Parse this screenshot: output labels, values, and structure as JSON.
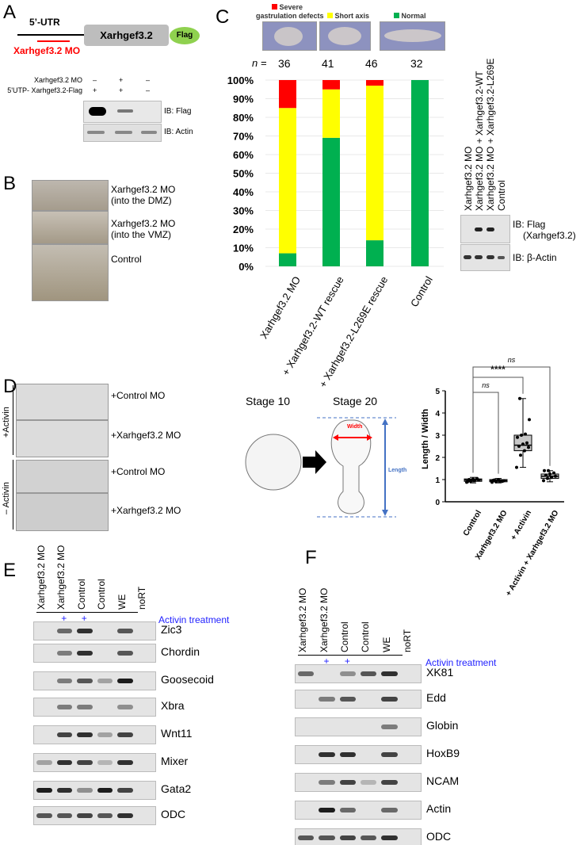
{
  "panels": {
    "a": "A",
    "b": "B",
    "c": "C",
    "d": "D",
    "e": "E",
    "f": "F"
  },
  "panelA": {
    "utr": "5’-UTR",
    "gene": "Xarhgef3.2",
    "tag": "Flag",
    "mo": "Xarhgef3.2 MO",
    "row1_label": "Xarhgef3.2 MO",
    "row1": [
      "–",
      "+",
      "–"
    ],
    "row2_label": "5'UTP- Xarhgef3.2-Flag",
    "row2": [
      "+",
      "+",
      "–"
    ],
    "ib1": "IB: Flag",
    "ib2": "IB: Actin"
  },
  "panelB": {
    "rows": [
      {
        "l1": "Xarhgef3.2 MO",
        "l2": "(into the DMZ)"
      },
      {
        "l1": "Xarhgef3.2 MO",
        "l2": "(into the VMZ)"
      },
      {
        "l1": "Control",
        "l2": ""
      }
    ]
  },
  "panelC": {
    "legend": [
      {
        "label": "Severe",
        "label2": "gastrulation defects",
        "color": "#ff0000"
      },
      {
        "label": "Short axis",
        "color": "#ffff00"
      },
      {
        "label": "Normal",
        "color": "#00b050"
      }
    ],
    "n_label": "n =",
    "blot_lanes": [
      "Xarhgef3.2 MO",
      "Xarhgef3.2 MO + Xarhgef3.2-WT",
      "Xarhgef3.2 MO + Xarhgef3.2-L269E",
      "Control"
    ],
    "ib1": "IB:  Flag",
    "ib1b": "(Xarhgef3.2)",
    "ib2": "IB:  β-Actin"
  },
  "panelD": {
    "activin_plus": "+Activin",
    "activin_minus": "– Activin",
    "rows": [
      "+Control MO",
      "+Xarhgef3.2 MO",
      "+Control MO",
      "+Xarhgef3.2 MO"
    ],
    "stage10": "Stage 10",
    "stage20": "Stage 20",
    "width": "Width",
    "length": "Length"
  },
  "panelE": {
    "lanes": [
      "Xarhgef3.2 MO",
      "Xarhgef3.2 MO",
      "Control",
      "Control",
      "WE",
      "noRT"
    ],
    "plus": [
      "",
      "+",
      "+",
      "",
      "",
      ""
    ],
    "treatment": "Activin treatment",
    "genes": [
      {
        "name": "Zic3",
        "bands": [
          0,
          0.5,
          0.8,
          0,
          0.6,
          0
        ]
      },
      {
        "name": "Chordin",
        "bands": [
          0,
          0.4,
          0.8,
          0,
          0.6,
          0
        ]
      },
      {
        "name": "Goosecoid",
        "bands": [
          0,
          0.4,
          0.6,
          0.2,
          0.9,
          0
        ]
      },
      {
        "name": "Xbra",
        "bands": [
          0,
          0.4,
          0.4,
          0,
          0.3,
          0
        ]
      },
      {
        "name": "Wnt11",
        "bands": [
          0,
          0.7,
          0.8,
          0.2,
          0.7,
          0
        ]
      },
      {
        "name": "Mixer",
        "bands": [
          0.2,
          0.8,
          0.7,
          0.1,
          0.8,
          0
        ]
      },
      {
        "name": "Gata2",
        "bands": [
          0.9,
          0.8,
          0.3,
          0.9,
          0.7,
          0
        ]
      },
      {
        "name": "ODC",
        "bands": [
          0.6,
          0.6,
          0.7,
          0.6,
          0.8,
          0
        ]
      }
    ]
  },
  "panelF": {
    "lanes": [
      "Xarhgef3.2 MO",
      "Xarhgef3.2 MO",
      "Control",
      "Control",
      "WE",
      "noRT"
    ],
    "plus": [
      "",
      "+",
      "+",
      "",
      "",
      ""
    ],
    "treatment": "Activin treatment",
    "genes": [
      {
        "name": "XK81",
        "bands": [
          0.5,
          0,
          0.3,
          0.6,
          0.8,
          0
        ]
      },
      {
        "name": "Edd",
        "bands": [
          0,
          0.4,
          0.6,
          0,
          0.7,
          0
        ]
      },
      {
        "name": "Globin",
        "bands": [
          0,
          0,
          0,
          0,
          0.4,
          0
        ]
      },
      {
        "name": "HoxB9",
        "bands": [
          0,
          0.8,
          0.8,
          0,
          0.7,
          0
        ]
      },
      {
        "name": "NCAM",
        "bands": [
          0,
          0.4,
          0.7,
          0.1,
          0.7,
          0
        ]
      },
      {
        "name": "Actin",
        "bands": [
          0,
          0.9,
          0.5,
          0,
          0.5,
          0
        ]
      },
      {
        "name": "ODC",
        "bands": [
          0.6,
          0.6,
          0.7,
          0.6,
          0.8,
          0
        ]
      }
    ]
  },
  "chart_data": [
    {
      "type": "bar",
      "stacked": true,
      "categories": [
        "Xarhgef3.2 MO",
        "+ Xarhgef3.2-WT rescue",
        "+ Xarhgef3.2-L269E rescue",
        "Control"
      ],
      "n": [
        "36",
        "41",
        "46",
        "32"
      ],
      "series": [
        {
          "name": "Normal",
          "color": "#00b050",
          "values": [
            7,
            69,
            14,
            100
          ]
        },
        {
          "name": "Short axis",
          "color": "#ffff00",
          "values": [
            78,
            26,
            83,
            0
          ]
        },
        {
          "name": "Severe gastrulation defects",
          "color": "#ff0000",
          "values": [
            15,
            5,
            3,
            0
          ]
        }
      ],
      "yticks": [
        "0%",
        "10%",
        "20%",
        "30%",
        "40%",
        "50%",
        "60%",
        "70%",
        "80%",
        "90%",
        "100%"
      ],
      "ylim": [
        0,
        100
      ]
    },
    {
      "type": "box",
      "ylabel": "Length / Width",
      "ylim": [
        0,
        5
      ],
      "yticks": [
        "0",
        "1",
        "2",
        "3",
        "4",
        "5"
      ],
      "categories": [
        "Control",
        "Xarhgef3.2 MO",
        "+ Activin",
        "+ Activin + Xarhgef3.2 MO"
      ],
      "boxes": [
        {
          "min": 0.85,
          "q1": 0.92,
          "median": 0.98,
          "q3": 1.03,
          "max": 1.1
        },
        {
          "min": 0.85,
          "q1": 0.9,
          "median": 0.95,
          "q3": 1.0,
          "max": 1.05
        },
        {
          "min": 1.55,
          "q1": 2.3,
          "median": 2.55,
          "q3": 3.0,
          "max": 4.65
        },
        {
          "min": 0.9,
          "q1": 1.05,
          "median": 1.15,
          "q3": 1.25,
          "max": 1.4
        }
      ],
      "points": [
        [
          0.88,
          0.92,
          0.95,
          0.98,
          1.0,
          1.02,
          1.05,
          0.9,
          0.97
        ],
        [
          0.88,
          0.9,
          0.93,
          0.95,
          0.98,
          1.0,
          0.92,
          0.96
        ],
        [
          1.55,
          2.1,
          2.3,
          2.45,
          2.5,
          2.6,
          2.65,
          2.9,
          3.0,
          3.05,
          3.7,
          4.65
        ],
        [
          0.95,
          1.05,
          1.1,
          1.15,
          1.2,
          1.25,
          1.3,
          1.4,
          1.4
        ]
      ],
      "significance": [
        {
          "pair": "Control vs Xarhgef3.2 MO",
          "label": "ns"
        },
        {
          "pair": "Control vs + Activin",
          "label": "****"
        },
        {
          "pair": "Control vs + Activin + Xarhgef3.2 MO",
          "label": "ns"
        }
      ]
    }
  ]
}
